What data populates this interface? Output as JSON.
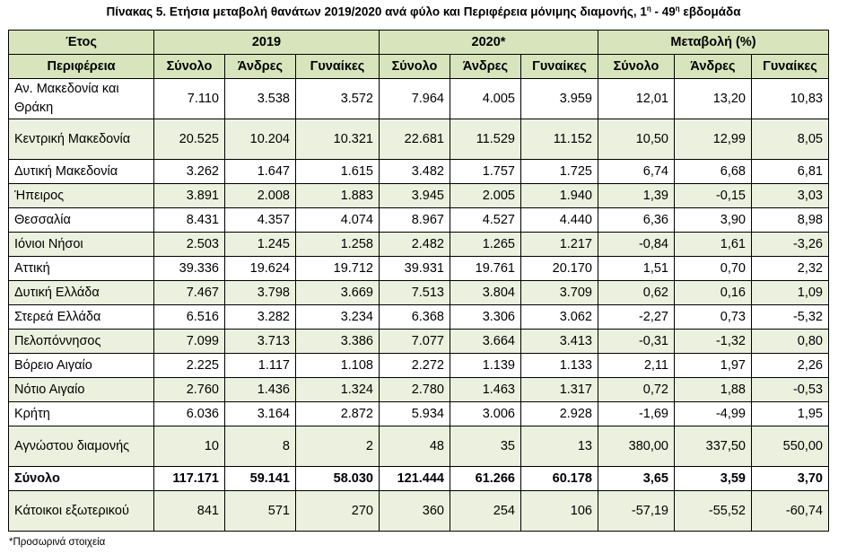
{
  "title": {
    "main": "Πίνακας 5. Ετήσια μεταβολή θανάτων 2019/2020 ανά φύλο και Περιφέρεια μόνιμης διαμονής, 1",
    "sup1": "η",
    "mid": " - 49",
    "sup2": "η",
    "end": " εβδομάδα"
  },
  "header": {
    "year_label": "Έτος",
    "group_2019": "2019",
    "group_2020": "2020*",
    "group_change": "Μεταβολή (%)",
    "region_label": "Περιφέρεια",
    "sub": [
      "Σύνολο",
      "Άνδρες",
      "Γυναίκες",
      "Σύνολο",
      "Άνδρες",
      "Γυναίκες",
      "Σύνολο",
      "Άνδρες",
      "Γυναίκες"
    ]
  },
  "rows": [
    {
      "name": "Αν. Μακεδονία και Θράκη",
      "values": [
        "7.110",
        "3.538",
        "3.572",
        "7.964",
        "4.005",
        "3.959",
        "12,01",
        "13,20",
        "10,83"
      ]
    },
    {
      "name": "Κεντρική Μακεδονία",
      "values": [
        "20.525",
        "10.204",
        "10.321",
        "22.681",
        "11.529",
        "11.152",
        "10,50",
        "12,99",
        "8,05"
      ]
    },
    {
      "name": "Δυτική Μακεδονία",
      "values": [
        "3.262",
        "1.647",
        "1.615",
        "3.482",
        "1.757",
        "1.725",
        "6,74",
        "6,68",
        "6,81"
      ]
    },
    {
      "name": "Ήπειρος",
      "values": [
        "3.891",
        "2.008",
        "1.883",
        "3.945",
        "2.005",
        "1.940",
        "1,39",
        "-0,15",
        "3,03"
      ]
    },
    {
      "name": "Θεσσαλία",
      "values": [
        "8.431",
        "4.357",
        "4.074",
        "8.967",
        "4.527",
        "4.440",
        "6,36",
        "3,90",
        "8,98"
      ]
    },
    {
      "name": "Ιόνιοι Νήσοι",
      "values": [
        "2.503",
        "1.245",
        "1.258",
        "2.482",
        "1.265",
        "1.217",
        "-0,84",
        "1,61",
        "-3,26"
      ]
    },
    {
      "name": "Αττική",
      "values": [
        "39.336",
        "19.624",
        "19.712",
        "39.931",
        "19.761",
        "20.170",
        "1,51",
        "0,70",
        "2,32"
      ]
    },
    {
      "name": "Δυτική Ελλάδα",
      "values": [
        "7.467",
        "3.798",
        "3.669",
        "7.513",
        "3.804",
        "3.709",
        "0,62",
        "0,16",
        "1,09"
      ]
    },
    {
      "name": "Στερεά Ελλάδα",
      "values": [
        "6.516",
        "3.282",
        "3.234",
        "6.368",
        "3.306",
        "3.062",
        "-2,27",
        "0,73",
        "-5,32"
      ]
    },
    {
      "name": "Πελοπόννησος",
      "values": [
        "7.099",
        "3.713",
        "3.386",
        "7.077",
        "3.664",
        "3.413",
        "-0,31",
        "-1,32",
        "0,80"
      ]
    },
    {
      "name": "Βόρειο Αιγαίο",
      "values": [
        "2.225",
        "1.117",
        "1.108",
        "2.272",
        "1.139",
        "1.133",
        "2,11",
        "1,97",
        "2,26"
      ]
    },
    {
      "name": "Νότιο Αιγαίο",
      "values": [
        "2.760",
        "1.436",
        "1.324",
        "2.780",
        "1.463",
        "1.317",
        "0,72",
        "1,88",
        "-0,53"
      ]
    },
    {
      "name": "Κρήτη",
      "values": [
        "6.036",
        "3.164",
        "2.872",
        "5.934",
        "3.006",
        "2.928",
        "-1,69",
        "-4,99",
        "1,95"
      ]
    },
    {
      "name": "Αγνώστου διαμονής",
      "values": [
        "10",
        "8",
        "2",
        "48",
        "35",
        "13",
        "380,00",
        "337,50",
        "550,00"
      ]
    },
    {
      "name": "Σύνολο",
      "values": [
        "117.171",
        "59.141",
        "58.030",
        "121.444",
        "61.266",
        "60.178",
        "3,65",
        "3,59",
        "3,70"
      ]
    },
    {
      "name": "Κάτοικοι εξωτερικού",
      "values": [
        "841",
        "571",
        "270",
        "360",
        "254",
        "106",
        "-57,19",
        "-55,52",
        "-60,74"
      ]
    }
  ],
  "footnote": "*Προσωρινά στοιχεία",
  "colors": {
    "header_bg": "#d8e4bc",
    "stripe_bg": "#ebf1de",
    "border": "#000000"
  }
}
